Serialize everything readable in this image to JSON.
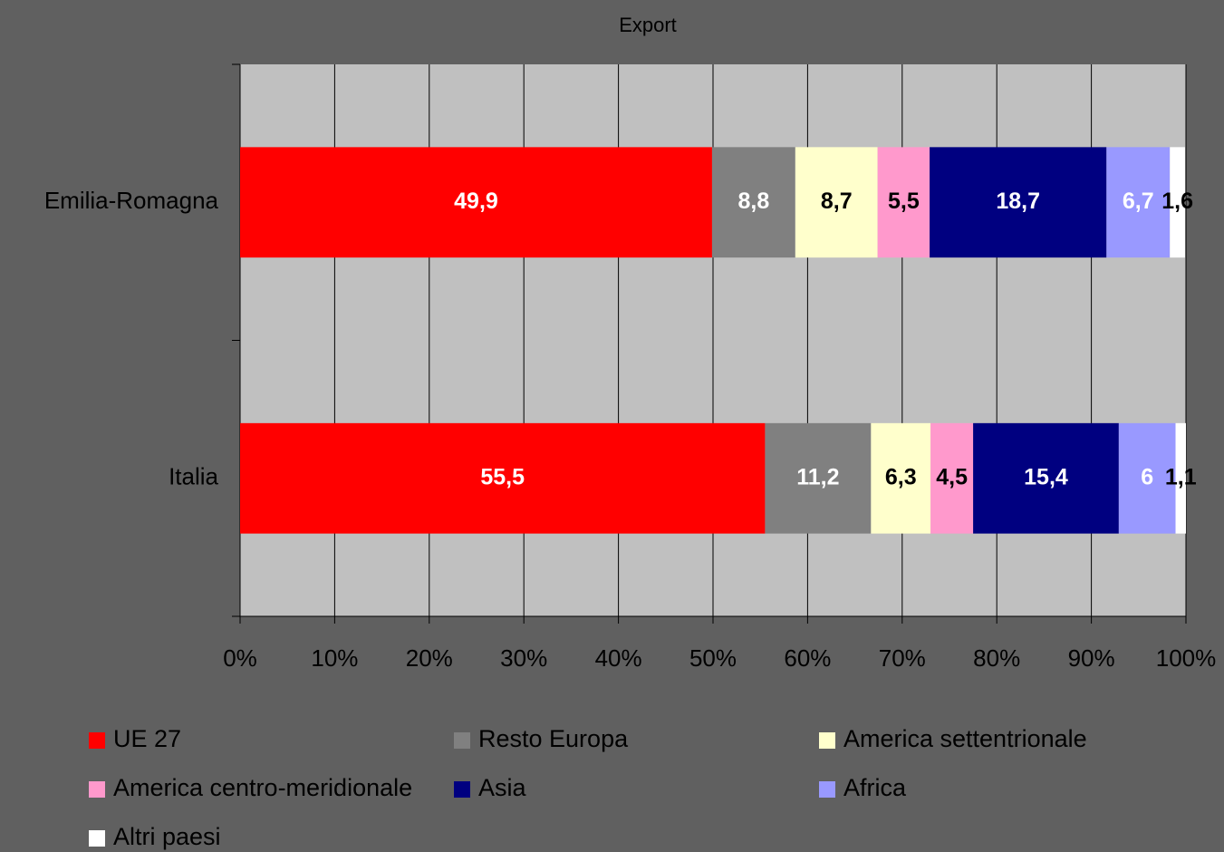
{
  "chart_data": {
    "type": "stacked-barh",
    "title": "Export",
    "categories": [
      "Emilia-Romagna",
      "Italia"
    ],
    "series": [
      {
        "name": "UE 27",
        "color": "#ff0000",
        "values": [
          49.9,
          55.5
        ],
        "value_labels": [
          "49,9",
          "55,5"
        ]
      },
      {
        "name": "Resto Europa",
        "color": "#808080",
        "values": [
          8.8,
          11.2
        ],
        "value_labels": [
          "8,8",
          "11,2"
        ]
      },
      {
        "name": "America settentrionale",
        "color": "#ffffcc",
        "values": [
          8.7,
          6.3
        ],
        "value_labels": [
          "8,7",
          "6,3"
        ]
      },
      {
        "name": "America centro-meridionale",
        "color": "#ff99cc",
        "values": [
          5.5,
          4.5
        ],
        "value_labels": [
          "5,5",
          "4,5"
        ]
      },
      {
        "name": "Asia",
        "color": "#000080",
        "values": [
          18.7,
          15.4
        ],
        "value_labels": [
          "18,7",
          "15,4"
        ]
      },
      {
        "name": "Africa",
        "color": "#9999ff",
        "values": [
          6.7,
          6
        ],
        "value_labels": [
          "6,7",
          "6"
        ]
      },
      {
        "name": "Altri paesi",
        "color": "#ffffff",
        "values": [
          1.6,
          1.1
        ],
        "value_labels": [
          "1,6",
          "1,1"
        ]
      }
    ],
    "xlim": [
      0,
      100
    ],
    "xticks": [
      {
        "value": 0,
        "label": "0%"
      },
      {
        "value": 10,
        "label": "10%"
      },
      {
        "value": 20,
        "label": "20%"
      },
      {
        "value": 30,
        "label": "30%"
      },
      {
        "value": 40,
        "label": "40%"
      },
      {
        "value": 50,
        "label": "50%"
      },
      {
        "value": 60,
        "label": "60%"
      },
      {
        "value": 70,
        "label": "70%"
      },
      {
        "value": 80,
        "label": "80%"
      },
      {
        "value": 90,
        "label": "90%"
      },
      {
        "value": 100,
        "label": "100%"
      }
    ],
    "grid": true,
    "legend": "bottom"
  }
}
